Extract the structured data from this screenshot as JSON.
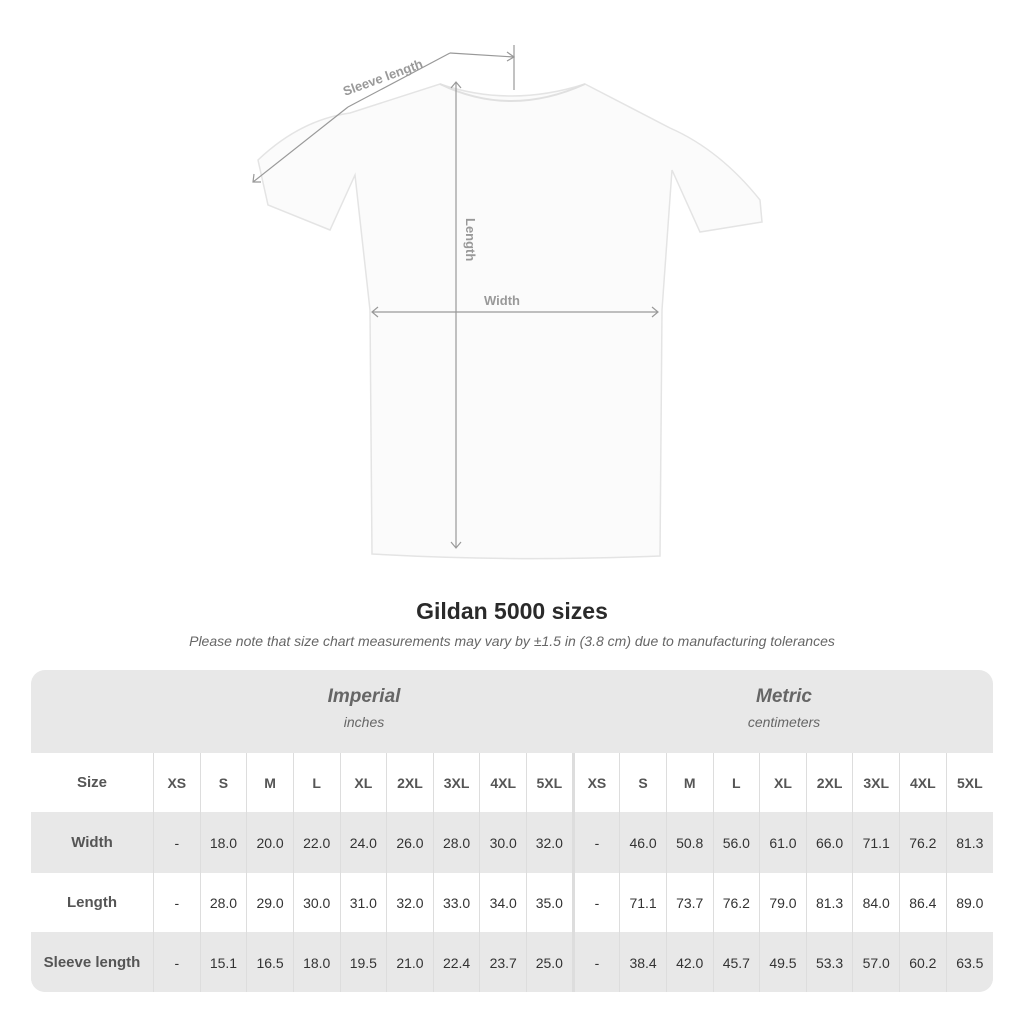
{
  "diagram": {
    "sleeve_label": "Sleeve length",
    "length_label": "Length",
    "width_label": "Width"
  },
  "title": "Gildan 5000 sizes",
  "note": "Please note that size chart measurements may vary by ±1.5 in (3.8 cm) due to manufacturing tolerances",
  "imperial": {
    "heading": "Imperial",
    "unit": "inches"
  },
  "metric": {
    "heading": "Metric",
    "unit": "centimeters"
  },
  "size_label": "Size",
  "sizes": [
    "XS",
    "S",
    "M",
    "L",
    "XL",
    "2XL",
    "3XL",
    "4XL",
    "5XL"
  ],
  "rows": [
    {
      "label": "Width",
      "imperial": [
        "-",
        "18.0",
        "20.0",
        "22.0",
        "24.0",
        "26.0",
        "28.0",
        "30.0",
        "32.0"
      ],
      "metric": [
        "-",
        "46.0",
        "50.8",
        "56.0",
        "61.0",
        "66.0",
        "71.1",
        "76.2",
        "81.3"
      ]
    },
    {
      "label": "Length",
      "imperial": [
        "-",
        "28.0",
        "29.0",
        "30.0",
        "31.0",
        "32.0",
        "33.0",
        "34.0",
        "35.0"
      ],
      "metric": [
        "-",
        "71.1",
        "73.7",
        "76.2",
        "79.0",
        "81.3",
        "84.0",
        "86.4",
        "89.0"
      ]
    },
    {
      "label": "Sleeve length",
      "imperial": [
        "-",
        "15.1",
        "16.5",
        "18.0",
        "19.5",
        "21.0",
        "22.4",
        "23.7",
        "25.0"
      ],
      "metric": [
        "-",
        "38.4",
        "42.0",
        "45.7",
        "49.5",
        "53.3",
        "57.0",
        "60.2",
        "63.5"
      ]
    }
  ]
}
